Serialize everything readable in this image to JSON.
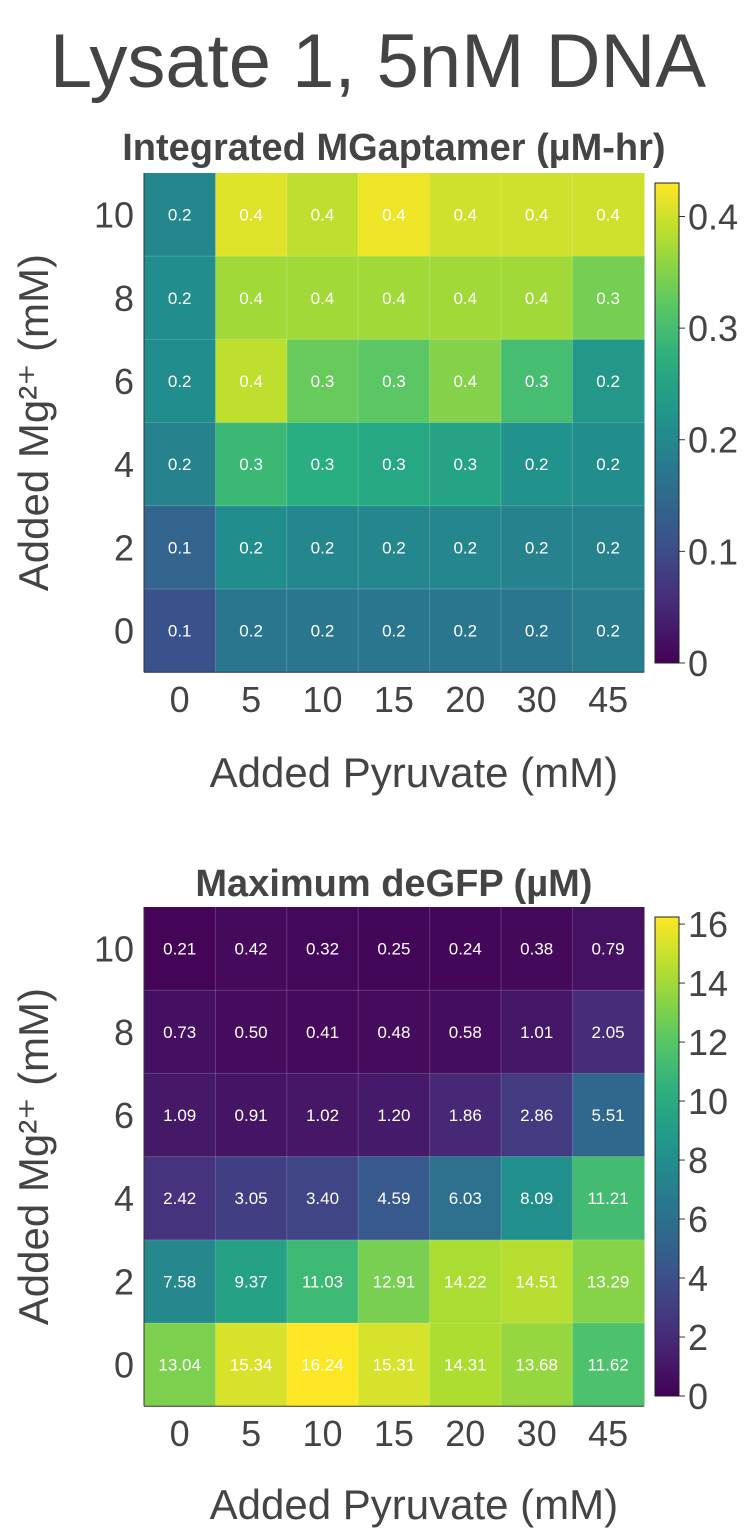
{
  "suptitle": "Lysate 1, 5nM DNA",
  "chart_data": [
    {
      "type": "heatmap",
      "title": "Integrated MGaptamer (µM-hr)",
      "xlabel": "Added Pyruvate (mM)",
      "ylabel": "Added Mg²⁺ (mM)",
      "x": [
        "0",
        "5",
        "10",
        "15",
        "20",
        "30",
        "45"
      ],
      "y": [
        "10",
        "8",
        "6",
        "4",
        "2",
        "0"
      ],
      "values": [
        [
          0.2,
          0.41,
          0.39,
          0.42,
          0.4,
          0.4,
          0.4
        ],
        [
          0.21,
          0.37,
          0.37,
          0.37,
          0.37,
          0.37,
          0.34
        ],
        [
          0.21,
          0.39,
          0.33,
          0.32,
          0.35,
          0.3,
          0.23
        ],
        [
          0.19,
          0.29,
          0.27,
          0.26,
          0.25,
          0.22,
          0.21
        ],
        [
          0.14,
          0.21,
          0.2,
          0.2,
          0.2,
          0.19,
          0.19
        ],
        [
          0.11,
          0.17,
          0.17,
          0.17,
          0.17,
          0.17,
          0.18
        ]
      ],
      "cell_labels": [
        [
          "0.2",
          "0.4",
          "0.4",
          "0.4",
          "0.4",
          "0.4",
          "0.4"
        ],
        [
          "0.2",
          "0.4",
          "0.4",
          "0.4",
          "0.4",
          "0.4",
          "0.3"
        ],
        [
          "0.2",
          "0.4",
          "0.3",
          "0.3",
          "0.4",
          "0.3",
          "0.2"
        ],
        [
          "0.2",
          "0.3",
          "0.3",
          "0.3",
          "0.3",
          "0.2",
          "0.2"
        ],
        [
          "0.1",
          "0.2",
          "0.2",
          "0.2",
          "0.2",
          "0.2",
          "0.2"
        ],
        [
          "0.1",
          "0.2",
          "0.2",
          "0.2",
          "0.2",
          "0.2",
          "0.2"
        ]
      ],
      "vmin": 0,
      "vmax": 0.43,
      "colorbar_ticks": [
        {
          "value": 0,
          "label": "0"
        },
        {
          "value": 0.1,
          "label": "0.1"
        },
        {
          "value": 0.2,
          "label": "0.2"
        },
        {
          "value": 0.3,
          "label": "0.3"
        },
        {
          "value": 0.4,
          "label": "0.4"
        }
      ],
      "colormap": "viridis"
    },
    {
      "type": "heatmap",
      "title": "Maximum deGFP (µM)",
      "xlabel": "Added Pyruvate (mM)",
      "ylabel": "Added Mg²⁺ (mM)",
      "x": [
        "0",
        "5",
        "10",
        "15",
        "20",
        "30",
        "45"
      ],
      "y": [
        "10",
        "8",
        "6",
        "4",
        "2",
        "0"
      ],
      "values": [
        [
          0.21,
          0.42,
          0.32,
          0.25,
          0.24,
          0.38,
          0.79
        ],
        [
          0.73,
          0.5,
          0.41,
          0.48,
          0.58,
          1.01,
          2.05
        ],
        [
          1.09,
          0.91,
          1.02,
          1.2,
          1.86,
          2.86,
          5.51
        ],
        [
          2.42,
          3.05,
          3.4,
          4.59,
          6.03,
          8.09,
          11.21
        ],
        [
          7.58,
          9.37,
          11.03,
          12.91,
          14.22,
          14.51,
          13.29
        ],
        [
          13.04,
          15.34,
          16.24,
          15.31,
          14.31,
          13.68,
          11.62
        ]
      ],
      "cell_labels": [
        [
          "0.21",
          "0.42",
          "0.32",
          "0.25",
          "0.24",
          "0.38",
          "0.79"
        ],
        [
          "0.73",
          "0.50",
          "0.41",
          "0.48",
          "0.58",
          "1.01",
          "2.05"
        ],
        [
          "1.09",
          "0.91",
          "1.02",
          "1.20",
          "1.86",
          "2.86",
          "5.51"
        ],
        [
          "2.42",
          "3.05",
          "3.40",
          "4.59",
          "6.03",
          "8.09",
          "11.21"
        ],
        [
          "7.58",
          "9.37",
          "11.03",
          "12.91",
          "14.22",
          "14.51",
          "13.29"
        ],
        [
          "13.04",
          "15.34",
          "16.24",
          "15.31",
          "14.31",
          "13.68",
          "11.62"
        ]
      ],
      "vmin": 0,
      "vmax": 16.24,
      "colorbar_ticks": [
        {
          "value": 0,
          "label": "0"
        },
        {
          "value": 2,
          "label": "2"
        },
        {
          "value": 4,
          "label": "4"
        },
        {
          "value": 6,
          "label": "6"
        },
        {
          "value": 8,
          "label": "8"
        },
        {
          "value": 10,
          "label": "10"
        },
        {
          "value": 12,
          "label": "12"
        },
        {
          "value": 14,
          "label": "14"
        },
        {
          "value": 16,
          "label": "16"
        }
      ],
      "colormap": "viridis"
    }
  ]
}
